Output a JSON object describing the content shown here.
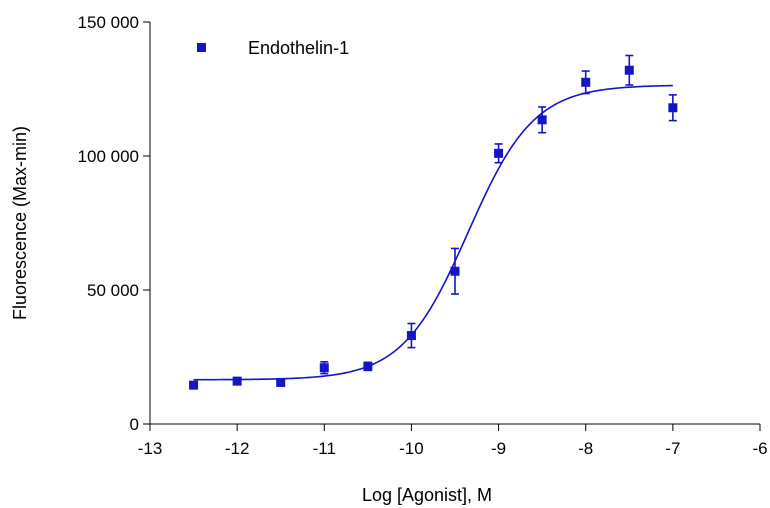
{
  "chart_data": {
    "type": "scatter",
    "xlabel": "Log [Agonist], M",
    "ylabel": "Fluorescence (Max-min)",
    "xlim": [
      -13,
      -6
    ],
    "ylim": [
      0,
      150000
    ],
    "x_ticks": [
      -13,
      -12,
      -11,
      -10,
      -9,
      -8,
      -7,
      -6
    ],
    "x_tick_labels": [
      "-13",
      "-12",
      "-11",
      "-10",
      "-9",
      "-8",
      "-7",
      "-6"
    ],
    "y_ticks": [
      0,
      50000,
      100000,
      150000
    ],
    "y_tick_labels": [
      "0",
      "50 000",
      "100 000",
      "150 000"
    ],
    "grid": false,
    "legend_position": "top-left",
    "colors": {
      "series": "#1515c8",
      "axis": "#000000"
    },
    "series": [
      {
        "name": "Endothelin-1",
        "marker": "square",
        "x": [
          -12.5,
          -12.0,
          -11.5,
          -11.0,
          -10.5,
          -10.0,
          -9.5,
          -9.0,
          -8.5,
          -8.0,
          -7.5,
          -7.0
        ],
        "y": [
          14500,
          16000,
          15500,
          21000,
          21500,
          33000,
          57000,
          101000,
          113500,
          127500,
          132000,
          118000
        ],
        "error": [
          1000,
          800,
          900,
          2200,
          1500,
          4500,
          8500,
          3500,
          4800,
          4200,
          5500,
          4800
        ]
      }
    ],
    "fit": {
      "model": "sigmoidal dose-response",
      "bottom": 16500,
      "top": 126500,
      "log_ec50": -9.35,
      "hill_slope": 1.15,
      "x_range": [
        -12.5,
        -7.0
      ]
    }
  }
}
